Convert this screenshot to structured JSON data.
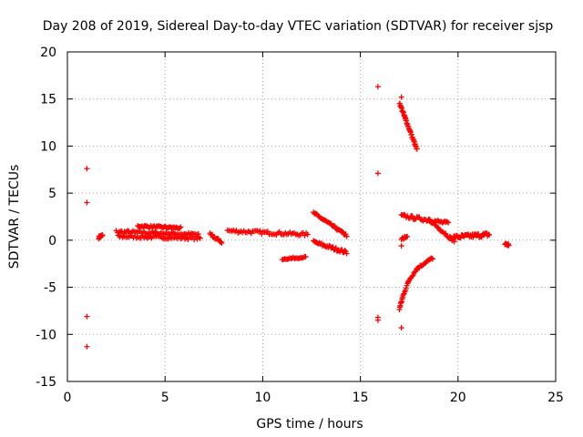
{
  "chart_data": {
    "type": "scatter",
    "title": "Day 208 of 2019, Sidereal Day-to-day VTEC variation (SDTVAR) for receiver sjsp",
    "xlabel": "GPS time / hours",
    "ylabel": "SDTVAR / TECUs",
    "xlim": [
      0,
      25
    ],
    "ylim": [
      -15,
      20
    ],
    "xticks": [
      0,
      5,
      10,
      15,
      20,
      25
    ],
    "yticks": [
      -15,
      -10,
      -5,
      0,
      5,
      10,
      15,
      20
    ],
    "xtick_labels": [
      "0",
      "5",
      "10",
      "15",
      "20",
      "25"
    ],
    "ytick_labels": [
      "-15",
      "-10",
      "-5",
      "0",
      "5",
      "10",
      "15",
      "20"
    ],
    "grid": true,
    "marker": "+",
    "color": "#ff0000",
    "isolated_points": [
      [
        1.0,
        7.6
      ],
      [
        1.0,
        4.0
      ],
      [
        1.0,
        -8.1
      ],
      [
        1.0,
        -11.3
      ],
      [
        15.9,
        16.3
      ],
      [
        15.9,
        7.1
      ],
      [
        15.9,
        -8.2
      ],
      [
        15.9,
        -8.5
      ],
      [
        17.1,
        15.2
      ],
      [
        17.1,
        -0.6
      ],
      [
        17.1,
        -9.3
      ]
    ],
    "tracks": [
      {
        "from": [
          1.6,
          0.3
        ],
        "to": [
          1.8,
          0.5
        ],
        "spread": 0.3,
        "n": 12
      },
      {
        "from": [
          2.5,
          0.9
        ],
        "to": [
          6.7,
          0.6
        ],
        "spread": 0.35,
        "n": 60
      },
      {
        "from": [
          2.6,
          0.4
        ],
        "to": [
          6.8,
          0.2
        ],
        "spread": 0.3,
        "n": 55
      },
      {
        "from": [
          3.6,
          1.5
        ],
        "to": [
          5.8,
          1.3
        ],
        "spread": 0.2,
        "n": 40
      },
      {
        "from": [
          7.3,
          0.6
        ],
        "to": [
          7.9,
          -0.2
        ],
        "spread": 0.3,
        "n": 15
      },
      {
        "from": [
          8.2,
          1.0
        ],
        "to": [
          12.3,
          0.6
        ],
        "spread": 0.35,
        "n": 55
      },
      {
        "from": [
          11.0,
          -2.0
        ],
        "to": [
          12.2,
          -1.8
        ],
        "spread": 0.15,
        "n": 20
      },
      {
        "from": [
          12.6,
          2.9
        ],
        "to": [
          14.3,
          0.5
        ],
        "spread": 0.25,
        "n": 35
      },
      {
        "from": [
          12.6,
          -0.2
        ],
        "to": [
          14.3,
          -1.3
        ],
        "spread": 0.35,
        "n": 35
      },
      {
        "from": [
          17.0,
          14.6
        ],
        "to": [
          17.9,
          9.6
        ],
        "spread": 0.25,
        "n": 40
      },
      {
        "from": [
          17.1,
          2.6
        ],
        "to": [
          19.5,
          1.8
        ],
        "spread": 0.35,
        "n": 40
      },
      {
        "from": [
          18.5,
          2.2
        ],
        "to": [
          19.8,
          -0.1
        ],
        "spread": 0.3,
        "n": 25
      },
      {
        "from": [
          17.1,
          0.1
        ],
        "to": [
          17.4,
          0.4
        ],
        "spread": 0.2,
        "n": 8
      },
      {
        "from": [
          19.7,
          0.3
        ],
        "to": [
          21.6,
          0.6
        ],
        "spread": 0.45,
        "n": 45
      },
      {
        "from": [
          22.4,
          -0.4
        ],
        "to": [
          22.6,
          -0.5
        ],
        "spread": 0.3,
        "n": 10
      }
    ],
    "curve_tracks": [
      {
        "points": [
          [
            17.0,
            -7.3
          ],
          [
            17.2,
            -5.8
          ],
          [
            17.5,
            -4.2
          ],
          [
            17.9,
            -3.0
          ],
          [
            18.3,
            -2.4
          ],
          [
            18.7,
            -1.9
          ]
        ],
        "spread": 0.25,
        "n": 45
      }
    ]
  }
}
